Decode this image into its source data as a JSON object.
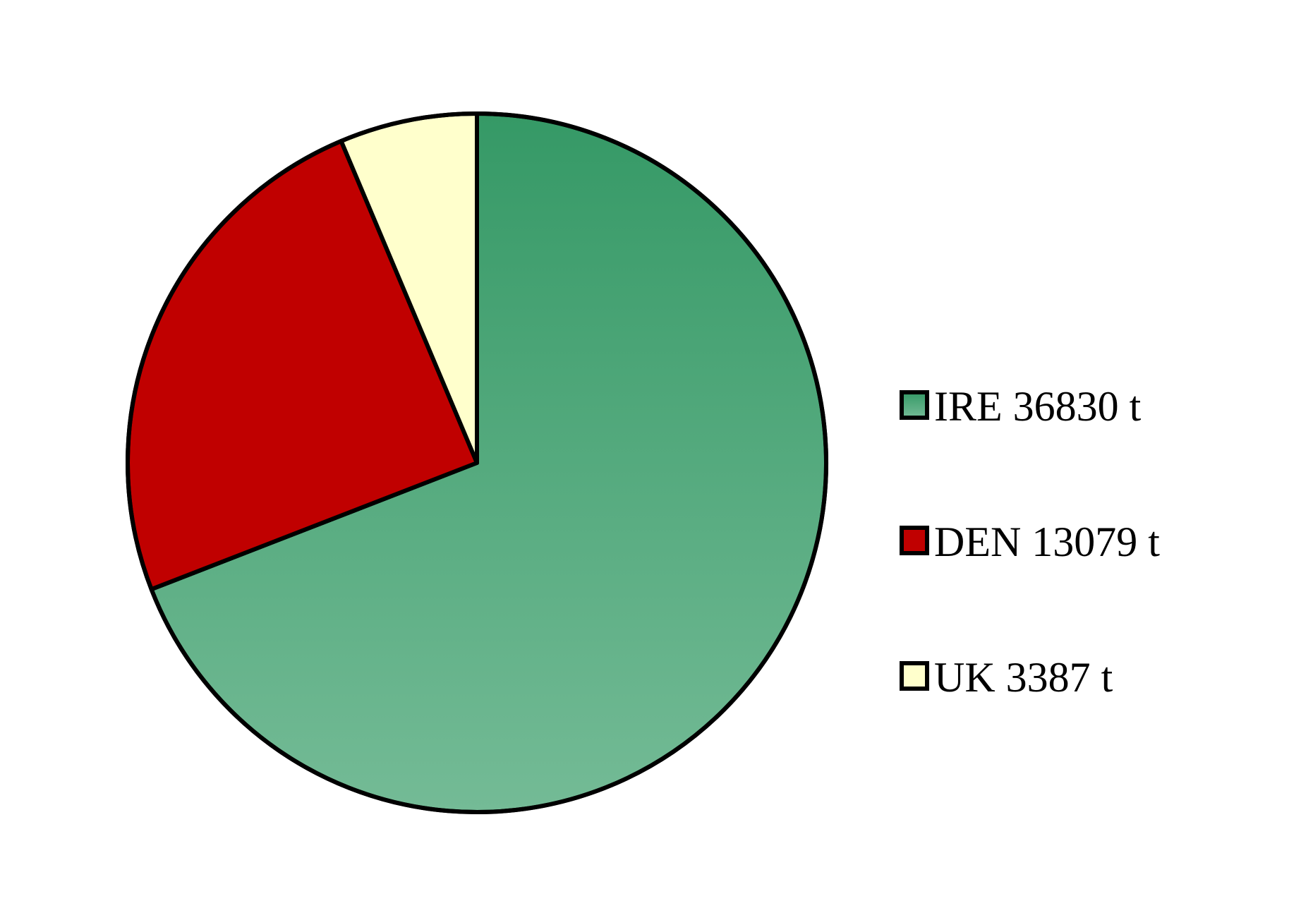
{
  "chart_data": {
    "type": "pie",
    "unit": "t",
    "slices": [
      {
        "label": "IRE 36830 t",
        "name": "IRE",
        "value": 36830,
        "color_top": "#359966",
        "color_bottom": "#74bb96"
      },
      {
        "label": "DEN 13079 t",
        "name": "DEN",
        "value": 13079,
        "color": "#c00000"
      },
      {
        "label": "UK 3387 t",
        "name": "UK",
        "value": 3387,
        "color": "#ffffcc"
      }
    ],
    "start_angle": "12 o'clock",
    "direction": "clockwise",
    "legend_position": "right"
  }
}
